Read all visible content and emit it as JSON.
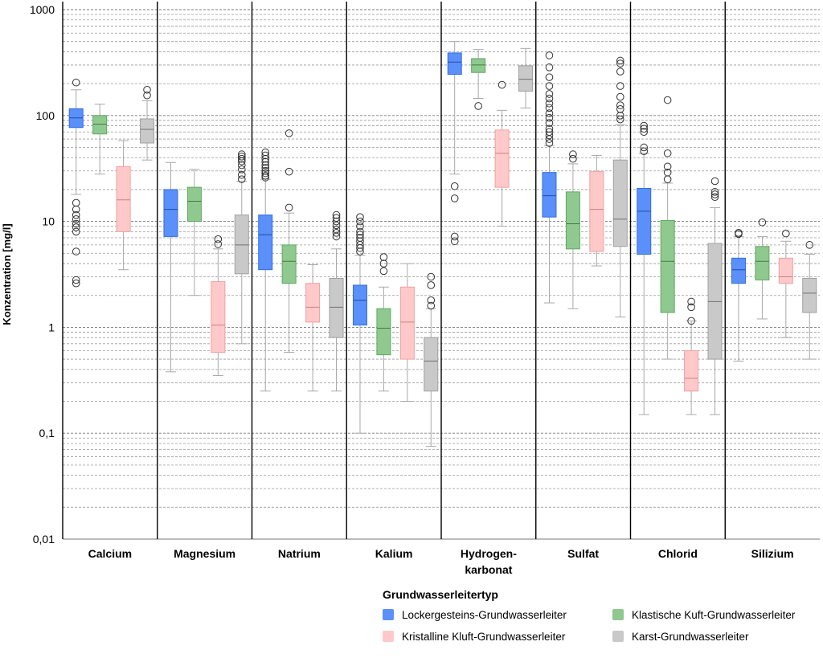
{
  "chart_data": {
    "type": "boxplot",
    "ylabel": "Konzentration [mg/l]",
    "yscale": "log",
    "ylim": [
      0.01,
      1000
    ],
    "yticks": [
      "1000",
      "100",
      "10",
      "1",
      "0,1",
      "0,01"
    ],
    "categories": [
      "Calcium",
      "Magnesium",
      "Natrium",
      "Kalium",
      "Hydrogen-\nkarbonat",
      "Sulfat",
      "Chlorid",
      "Silizium"
    ],
    "legend": {
      "title": "Grundwasserleitertyp",
      "items": [
        "Lockergesteins-Grundwasserleiter",
        "Klastische Kuft-Grundwasserleiter",
        "Kristalline Kluft-Grundwasserleiter",
        "Karst-Grundwasserleiter"
      ],
      "placement": "bottom-right"
    },
    "colors": {
      "fills": [
        "#5b8ff9",
        "#8fc98f",
        "#ffc9c9",
        "#c9c9c9"
      ],
      "strokes": [
        "#2f6fe6",
        "#5fa85f",
        "#f0a0a0",
        "#a0a0a0"
      ],
      "medians": [
        "#1f4fa8",
        "#3f7f3f",
        "#d08080",
        "#707070"
      ]
    },
    "series": [
      {
        "name": "Lockergesteins-Grundwasserleiter",
        "boxes": [
          {
            "min": 18,
            "q1": 77,
            "median": 95,
            "q3": 116,
            "max": 175,
            "outliers": [
              2.6,
              2.8,
              5.2,
              8,
              8.8,
              9.5,
              10.5,
              11.5,
              13,
              15,
              205
            ]
          },
          {
            "min": 0.38,
            "q1": 7.2,
            "median": 13,
            "q3": 20,
            "max": 36,
            "outliers": []
          },
          {
            "min": 0.25,
            "q1": 3.5,
            "median": 7.5,
            "q3": 11.5,
            "max": 25,
            "outliers": [
              26,
              27,
              28.5,
              30,
              32,
              34,
              36.5,
              39,
              42,
              45
            ]
          },
          {
            "min": 0.1,
            "q1": 1.05,
            "median": 1.8,
            "q3": 2.5,
            "max": 4.8,
            "outliers": [
              5.2,
              5.6,
              6,
              6.5,
              7,
              7.5,
              8,
              9,
              10,
              11
            ]
          },
          {
            "min": 28,
            "q1": 245,
            "median": 320,
            "q3": 390,
            "max": 500,
            "outliers": [
              6.5,
              7.2,
              16.5,
              21.5
            ]
          },
          {
            "min": 1.7,
            "q1": 11,
            "median": 17.5,
            "q3": 29,
            "max": 52,
            "outliers": [
              55,
              60,
              65,
              70,
              75,
              85,
              95,
              105,
              118,
              130,
              145,
              160,
              190,
              230,
              285,
              370
            ]
          },
          {
            "min": 0.15,
            "q1": 4.9,
            "median": 12.5,
            "q3": 20.5,
            "max": 44,
            "outliers": [
              46,
              50,
              70,
              75,
              80
            ]
          },
          {
            "min": 0.48,
            "q1": 2.6,
            "median": 3.5,
            "q3": 4.5,
            "max": 7.2,
            "outliers": [
              7.6,
              7.8
            ]
          }
        ]
      },
      {
        "name": "Klastische Kuft-Grundwasserleiter",
        "boxes": [
          {
            "min": 28,
            "q1": 67,
            "median": 83,
            "q3": 100,
            "max": 128,
            "outliers": []
          },
          {
            "min": 2,
            "q1": 10,
            "median": 15.5,
            "q3": 21,
            "max": 31,
            "outliers": []
          },
          {
            "min": 0.58,
            "q1": 2.6,
            "median": 4.2,
            "q3": 6,
            "max": 12,
            "outliers": [
              13.5,
              29.5,
              68
            ]
          },
          {
            "min": 0.25,
            "q1": 0.55,
            "median": 0.98,
            "q3": 1.5,
            "max": 2.4,
            "outliers": [
              3.4,
              4,
              4.6
            ]
          },
          {
            "min": 145,
            "q1": 255,
            "median": 300,
            "q3": 345,
            "max": 420,
            "outliers": [
              123
            ]
          },
          {
            "min": 1.5,
            "q1": 5.5,
            "median": 9.5,
            "q3": 19,
            "max": 35,
            "outliers": [
              39,
              43
            ]
          },
          {
            "min": 0.5,
            "q1": 1.38,
            "median": 4.2,
            "q3": 10.2,
            "max": 23,
            "outliers": [
              25,
              29,
              33,
              44,
              140
            ]
          },
          {
            "min": 1.2,
            "q1": 2.8,
            "median": 4.2,
            "q3": 5.8,
            "max": 7.2,
            "outliers": [
              9.8
            ]
          }
        ]
      },
      {
        "name": "Kristalline Kluft-Grundwasserleiter",
        "boxes": [
          {
            "min": 3.5,
            "q1": 8,
            "median": 16,
            "q3": 33,
            "max": 58,
            "outliers": []
          },
          {
            "min": 0.35,
            "q1": 0.58,
            "median": 1.05,
            "q3": 2.7,
            "max": 5.5,
            "outliers": [
              6.1,
              6.8
            ]
          },
          {
            "min": 0.25,
            "q1": 1.12,
            "median": 1.55,
            "q3": 2.6,
            "max": 3.9,
            "outliers": []
          },
          {
            "min": 0.2,
            "q1": 0.5,
            "median": 1.12,
            "q3": 2.4,
            "max": 4,
            "outliers": []
          },
          {
            "min": 9,
            "q1": 21,
            "median": 44,
            "q3": 73,
            "max": 112,
            "outliers": [
              195
            ]
          },
          {
            "min": 3.8,
            "q1": 5.2,
            "median": 13,
            "q3": 29.5,
            "max": 42,
            "outliers": []
          },
          {
            "min": 0.15,
            "q1": 0.25,
            "median": 0.33,
            "q3": 0.6,
            "max": 1.15,
            "outliers": [
              1.15,
              1.55,
              1.75
            ]
          },
          {
            "min": 0.8,
            "q1": 2.6,
            "median": 3,
            "q3": 4.5,
            "max": 6.5,
            "outliers": [
              7.7
            ]
          }
        ]
      },
      {
        "name": "Karst-Grundwasserleiter",
        "boxes": [
          {
            "min": 38,
            "q1": 55,
            "median": 74,
            "q3": 93,
            "max": 138,
            "outliers": [
              155,
              175
            ]
          },
          {
            "min": 0.7,
            "q1": 3.2,
            "median": 6,
            "q3": 11.5,
            "max": 24,
            "outliers": [
              25,
              27.5,
              31,
              34,
              37,
              39,
              41,
              43
            ]
          },
          {
            "min": 0.25,
            "q1": 0.8,
            "median": 1.55,
            "q3": 2.9,
            "max": 5.5,
            "outliers": [
              7.2,
              7.8,
              8.4,
              9.2,
              10,
              10.8,
              11.5
            ]
          },
          {
            "min": 0.075,
            "q1": 0.25,
            "median": 0.48,
            "q3": 0.8,
            "max": 1.5,
            "outliers": [
              1.6,
              1.8,
              2.5,
              3
            ]
          },
          {
            "min": 118,
            "q1": 170,
            "median": 220,
            "q3": 295,
            "max": 430,
            "outliers": []
          },
          {
            "min": 1.25,
            "q1": 5.8,
            "median": 10.5,
            "q3": 38,
            "max": 82,
            "outliers": [
              92,
              100,
              115,
              125,
              150,
              190,
              260,
              310,
              330
            ]
          },
          {
            "min": 0.15,
            "q1": 0.5,
            "median": 1.75,
            "q3": 6.2,
            "max": 13.5,
            "outliers": [
              17,
              18,
              19,
              24
            ]
          },
          {
            "min": 0.5,
            "q1": 1.38,
            "median": 2.1,
            "q3": 2.9,
            "max": 4.9,
            "outliers": [
              6
            ]
          }
        ]
      }
    ]
  }
}
